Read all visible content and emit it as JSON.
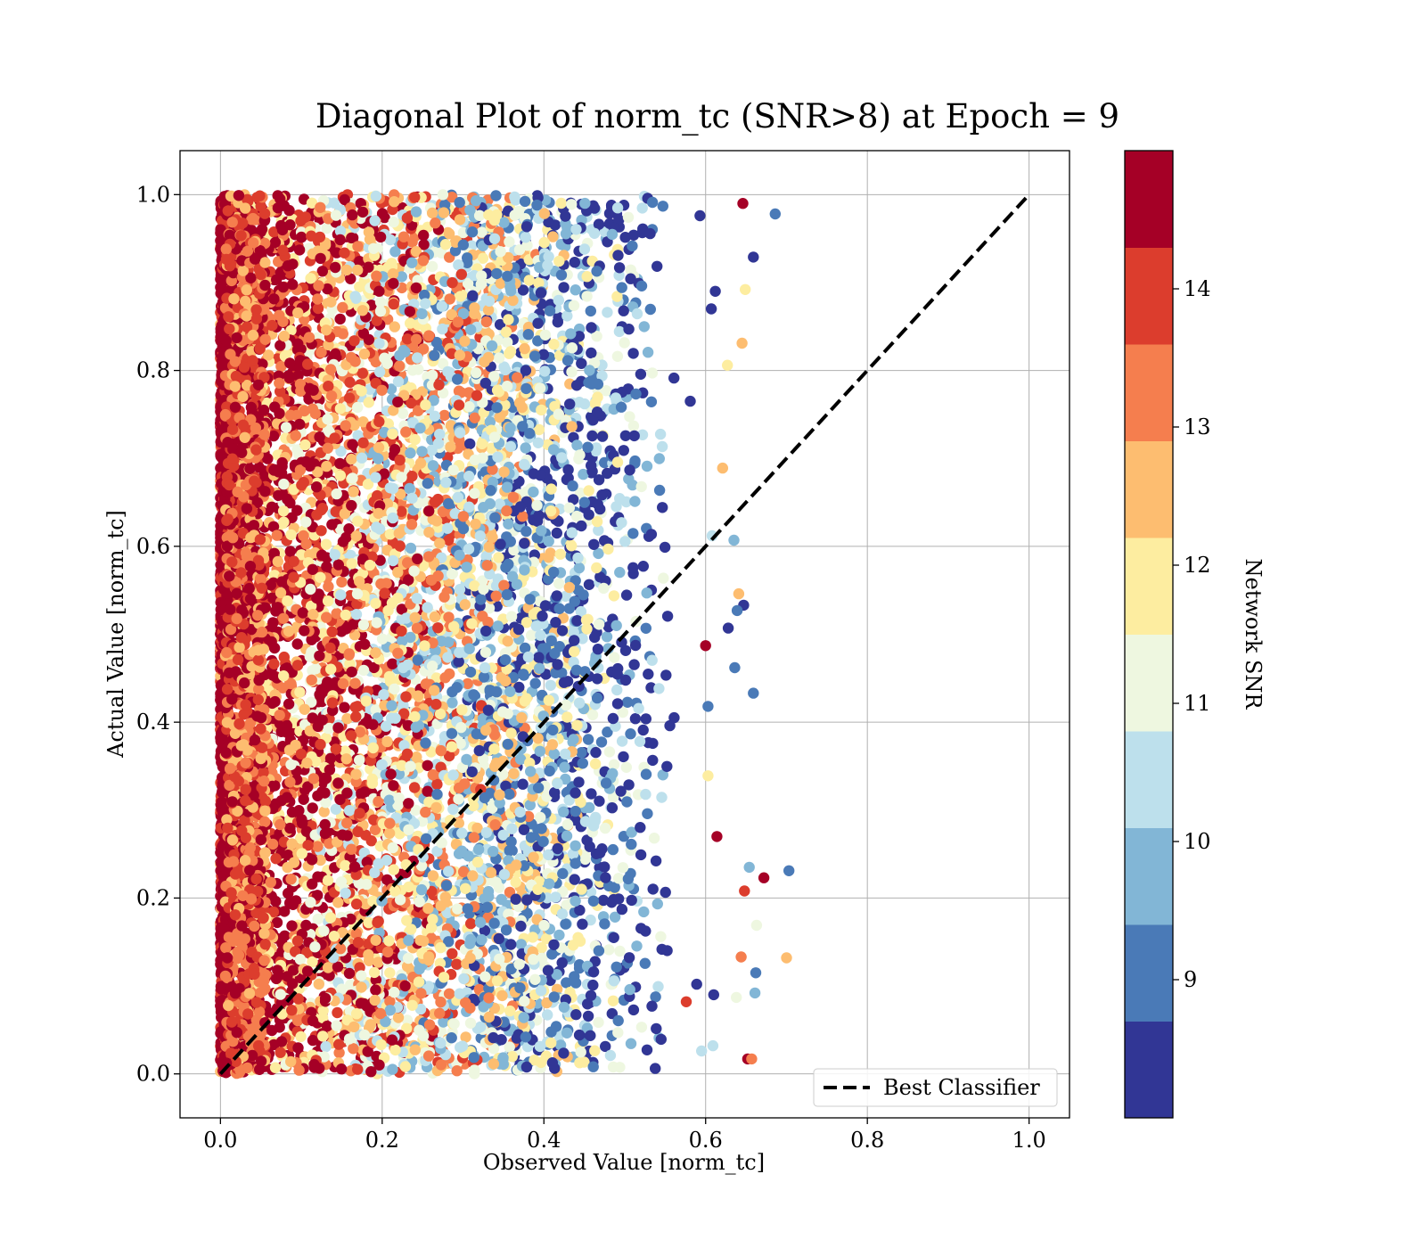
{
  "chart_data": {
    "type": "scatter",
    "title": "Diagonal Plot of norm_tc (SNR>8) at Epoch = 9",
    "xlabel": "Observed Value [norm_tc]",
    "ylabel": "Actual Value [norm_tc]",
    "xlim": [
      -0.05,
      1.05
    ],
    "ylim": [
      -0.05,
      1.05
    ],
    "x_ticks": [
      "0.0",
      "0.2",
      "0.4",
      "0.6",
      "0.8",
      "1.0"
    ],
    "y_ticks": [
      "0.0",
      "0.2",
      "0.4",
      "0.6",
      "0.8",
      "1.0"
    ],
    "grid": true,
    "legend": {
      "placement": "lower-right",
      "entries": [
        "Best Classifier"
      ]
    },
    "reference_line": {
      "name": "Best Classifier",
      "x": [
        0,
        1
      ],
      "y": [
        0,
        1
      ],
      "style": "dashed",
      "color": "#000000"
    },
    "colorbar": {
      "label": "Network SNR",
      "range": [
        8,
        15
      ],
      "ticks": [
        "9",
        "10",
        "11",
        "12",
        "13",
        "14"
      ],
      "tick_values": [
        9,
        10,
        11,
        12,
        13,
        14
      ],
      "colors": [
        "#313695",
        "#4a7ab7",
        "#82b6d6",
        "#bde0ec",
        "#eef7e0",
        "#fdeda0",
        "#fdbd70",
        "#f57e4e",
        "#dc3d2d",
        "#a50026"
      ]
    },
    "points": [
      [
        0.646,
        0.99,
        14.6
      ],
      [
        0.686,
        0.978,
        9.1
      ],
      [
        0.593,
        0.976,
        8.6
      ],
      [
        0.659,
        0.929,
        8.4
      ],
      [
        0.612,
        0.89,
        8.5
      ],
      [
        0.649,
        0.892,
        12.0
      ],
      [
        0.607,
        0.87,
        8.3
      ],
      [
        0.645,
        0.831,
        12.6
      ],
      [
        0.627,
        0.806,
        12.0
      ],
      [
        0.581,
        0.765,
        8.4
      ],
      [
        0.621,
        0.689,
        12.7
      ],
      [
        0.608,
        0.612,
        10.2
      ],
      [
        0.635,
        0.607,
        9.8
      ],
      [
        0.641,
        0.546,
        12.6
      ],
      [
        0.647,
        0.533,
        8.4
      ],
      [
        0.639,
        0.527,
        9.2
      ],
      [
        0.6,
        0.487,
        14.4
      ],
      [
        0.628,
        0.507,
        8.6
      ],
      [
        0.636,
        0.462,
        9.3
      ],
      [
        0.659,
        0.433,
        8.9
      ],
      [
        0.603,
        0.418,
        9.3
      ],
      [
        0.603,
        0.339,
        12.1
      ],
      [
        0.614,
        0.27,
        14.3
      ],
      [
        0.703,
        0.231,
        9.1
      ],
      [
        0.672,
        0.223,
        14.8
      ],
      [
        0.654,
        0.235,
        10.1
      ],
      [
        0.648,
        0.208,
        13.9
      ],
      [
        0.663,
        0.169,
        11.4
      ],
      [
        0.7,
        0.132,
        12.5
      ],
      [
        0.644,
        0.133,
        13.3
      ],
      [
        0.662,
        0.115,
        8.8
      ],
      [
        0.661,
        0.092,
        9.8
      ],
      [
        0.638,
        0.087,
        10.8
      ],
      [
        0.61,
        0.09,
        8.3
      ],
      [
        0.576,
        0.082,
        13.7
      ],
      [
        0.609,
        0.032,
        10.4
      ],
      [
        0.652,
        0.017,
        14.5
      ],
      [
        0.657,
        0.017,
        13.4
      ],
      [
        0.589,
        0.102,
        8.7
      ],
      [
        0.595,
        0.026,
        10.6
      ]
    ]
  }
}
